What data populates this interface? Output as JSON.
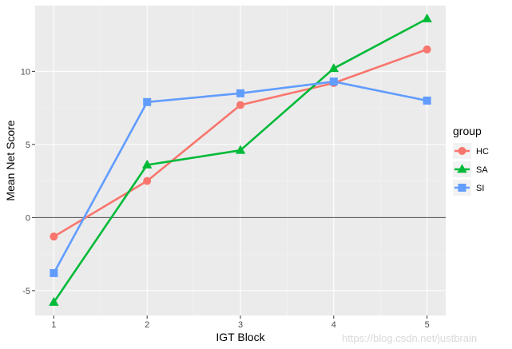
{
  "chart_data": {
    "type": "line",
    "title": "",
    "xlabel": "IGT Block",
    "ylabel": "Mean Net Score",
    "x": [
      1,
      2,
      3,
      4,
      5
    ],
    "x_tick_labels": [
      "1",
      "2",
      "3",
      "4",
      "5"
    ],
    "xlim": [
      0.8,
      5.2
    ],
    "ylim": [
      -6.7,
      14.5
    ],
    "y_ticks": [
      -5,
      0,
      5,
      10
    ],
    "y_tick_labels": [
      "-5",
      "0",
      "5",
      "10"
    ],
    "reference_line_y": 0,
    "grid": true,
    "legend_title": "group",
    "legend_position": "right",
    "series": [
      {
        "name": "HC",
        "color": "#F8766D",
        "marker": "circle",
        "values": [
          -1.3,
          2.5,
          7.7,
          9.2,
          11.5
        ]
      },
      {
        "name": "SA",
        "color": "#00BA38",
        "marker": "triangle",
        "values": [
          -5.8,
          3.6,
          4.6,
          10.2,
          13.6
        ]
      },
      {
        "name": "SI",
        "color": "#619CFF",
        "marker": "square",
        "values": [
          -3.8,
          7.9,
          8.5,
          9.3,
          8.0
        ]
      }
    ]
  },
  "watermark": "https://blog.csdn.net/justbrain"
}
